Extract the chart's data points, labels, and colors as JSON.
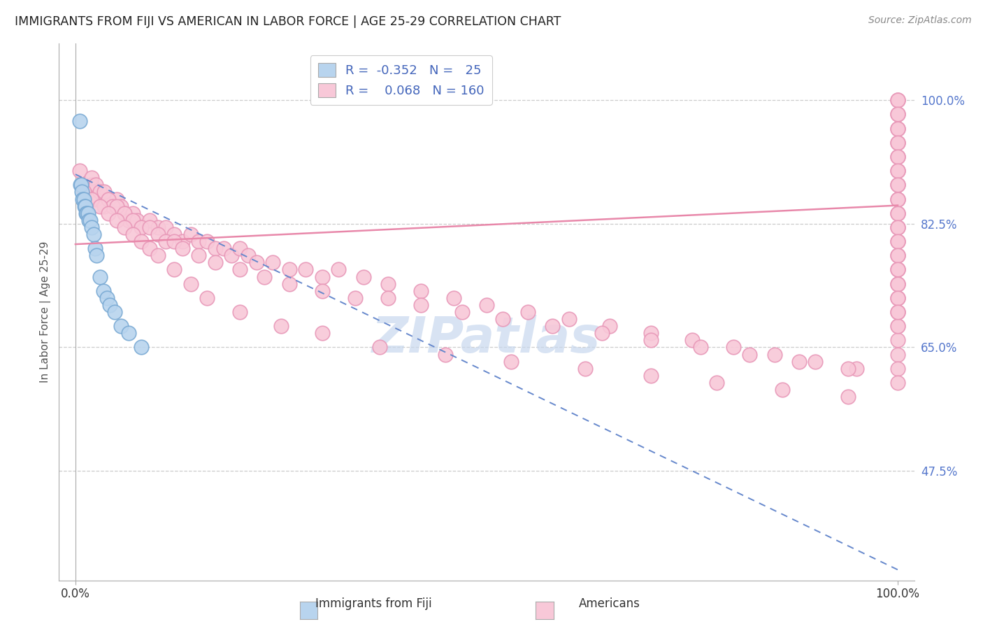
{
  "title": "IMMIGRANTS FROM FIJI VS AMERICAN IN LABOR FORCE | AGE 25-29 CORRELATION CHART",
  "source": "Source: ZipAtlas.com",
  "ylabel": "In Labor Force | Age 25-29",
  "y_tick_labels": [
    "100.0%",
    "82.5%",
    "65.0%",
    "47.5%"
  ],
  "y_tick_values": [
    1.0,
    0.825,
    0.65,
    0.475
  ],
  "xlim": [
    -0.02,
    1.02
  ],
  "ylim": [
    0.32,
    1.08
  ],
  "fiji_R": -0.352,
  "fiji_N": 25,
  "american_R": 0.068,
  "american_N": 160,
  "fiji_color": "#b8d4ee",
  "fiji_edge_color": "#7aaad4",
  "american_color": "#f8c8d8",
  "american_edge_color": "#e898b8",
  "fiji_line_color": "#6688cc",
  "american_line_color": "#e888aa",
  "background_color": "#ffffff",
  "grid_color": "#cccccc",
  "title_color": "#333333",
  "watermark_color": "#c8d8ee",
  "legend_box_fiji": "#b8d4ee",
  "legend_box_american": "#f8c8d8",
  "fiji_x": [
    0.005,
    0.006,
    0.007,
    0.008,
    0.009,
    0.01,
    0.011,
    0.012,
    0.013,
    0.014,
    0.015,
    0.016,
    0.018,
    0.02,
    0.022,
    0.024,
    0.026,
    0.03,
    0.034,
    0.038,
    0.042,
    0.048,
    0.055,
    0.065,
    0.08
  ],
  "fiji_y": [
    0.97,
    0.88,
    0.88,
    0.87,
    0.86,
    0.86,
    0.85,
    0.85,
    0.84,
    0.84,
    0.84,
    0.83,
    0.83,
    0.82,
    0.81,
    0.79,
    0.78,
    0.75,
    0.73,
    0.72,
    0.71,
    0.7,
    0.68,
    0.67,
    0.65
  ],
  "american_x": [
    0.005,
    0.01,
    0.015,
    0.02,
    0.025,
    0.03,
    0.035,
    0.04,
    0.045,
    0.05,
    0.055,
    0.06,
    0.065,
    0.07,
    0.075,
    0.08,
    0.09,
    0.1,
    0.11,
    0.12,
    0.13,
    0.14,
    0.15,
    0.16,
    0.17,
    0.18,
    0.19,
    0.2,
    0.21,
    0.22,
    0.24,
    0.26,
    0.28,
    0.3,
    0.32,
    0.35,
    0.38,
    0.42,
    0.46,
    0.5,
    0.55,
    0.6,
    0.65,
    0.7,
    0.75,
    0.8,
    0.85,
    0.9,
    0.95,
    1.0,
    1.0,
    1.0,
    1.0,
    1.0,
    1.0,
    1.0,
    1.0,
    1.0,
    1.0,
    1.0,
    1.0,
    1.0,
    1.0,
    1.0,
    1.0,
    1.0,
    1.0,
    1.0,
    1.0,
    1.0,
    0.02,
    0.025,
    0.03,
    0.035,
    0.04,
    0.045,
    0.05,
    0.06,
    0.07,
    0.08,
    0.09,
    0.1,
    0.11,
    0.12,
    0.13,
    0.15,
    0.17,
    0.2,
    0.23,
    0.26,
    0.3,
    0.34,
    0.38,
    0.42,
    0.47,
    0.52,
    0.58,
    0.64,
    0.7,
    0.76,
    0.82,
    0.88,
    0.94,
    1.0,
    1.0,
    1.0,
    1.0,
    1.0,
    1.0,
    1.0,
    1.0,
    1.0,
    1.0,
    1.0,
    1.0,
    1.0,
    1.0,
    1.0,
    1.0,
    1.0,
    0.01,
    0.02,
    0.03,
    0.04,
    0.05,
    0.06,
    0.07,
    0.08,
    0.09,
    0.1,
    0.12,
    0.14,
    0.16,
    0.2,
    0.25,
    0.3,
    0.37,
    0.45,
    0.53,
    0.62,
    0.7,
    0.78,
    0.86,
    0.94,
    1.0,
    1.0,
    1.0,
    1.0,
    1.0,
    1.0,
    1.0,
    1.0,
    1.0,
    1.0,
    1.0,
    1.0,
    1.0,
    1.0,
    1.0,
    1.0
  ],
  "american_y": [
    0.9,
    0.88,
    0.87,
    0.88,
    0.86,
    0.87,
    0.85,
    0.86,
    0.85,
    0.86,
    0.85,
    0.84,
    0.83,
    0.84,
    0.83,
    0.82,
    0.83,
    0.82,
    0.82,
    0.81,
    0.8,
    0.81,
    0.8,
    0.8,
    0.79,
    0.79,
    0.78,
    0.79,
    0.78,
    0.77,
    0.77,
    0.76,
    0.76,
    0.75,
    0.76,
    0.75,
    0.74,
    0.73,
    0.72,
    0.71,
    0.7,
    0.69,
    0.68,
    0.67,
    0.66,
    0.65,
    0.64,
    0.63,
    0.62,
    1.0,
    0.98,
    0.96,
    0.94,
    0.92,
    0.9,
    0.88,
    0.86,
    0.84,
    0.82,
    0.8,
    0.78,
    0.76,
    0.74,
    0.72,
    0.7,
    0.68,
    0.66,
    0.64,
    0.62,
    0.6,
    0.89,
    0.88,
    0.87,
    0.87,
    0.86,
    0.85,
    0.85,
    0.84,
    0.83,
    0.82,
    0.82,
    0.81,
    0.8,
    0.8,
    0.79,
    0.78,
    0.77,
    0.76,
    0.75,
    0.74,
    0.73,
    0.72,
    0.72,
    0.71,
    0.7,
    0.69,
    0.68,
    0.67,
    0.66,
    0.65,
    0.64,
    0.63,
    0.62,
    1.0,
    0.98,
    0.96,
    0.94,
    0.92,
    0.9,
    0.88,
    0.86,
    0.84,
    0.82,
    0.8,
    0.78,
    0.76,
    0.74,
    0.72,
    0.7,
    0.68,
    0.87,
    0.86,
    0.85,
    0.84,
    0.83,
    0.82,
    0.81,
    0.8,
    0.79,
    0.78,
    0.76,
    0.74,
    0.72,
    0.7,
    0.68,
    0.67,
    0.65,
    0.64,
    0.63,
    0.62,
    0.61,
    0.6,
    0.59,
    0.58,
    1.0,
    0.98,
    0.96,
    0.94,
    0.92,
    0.9,
    0.88,
    0.86,
    0.84,
    0.82,
    0.8,
    0.78,
    0.76,
    0.74,
    0.72,
    0.7
  ],
  "fiji_trend_x": [
    0.0,
    1.0
  ],
  "fiji_trend_y": [
    0.895,
    0.335
  ],
  "american_trend_x": [
    0.0,
    1.0
  ],
  "american_trend_y": [
    0.796,
    0.851
  ]
}
